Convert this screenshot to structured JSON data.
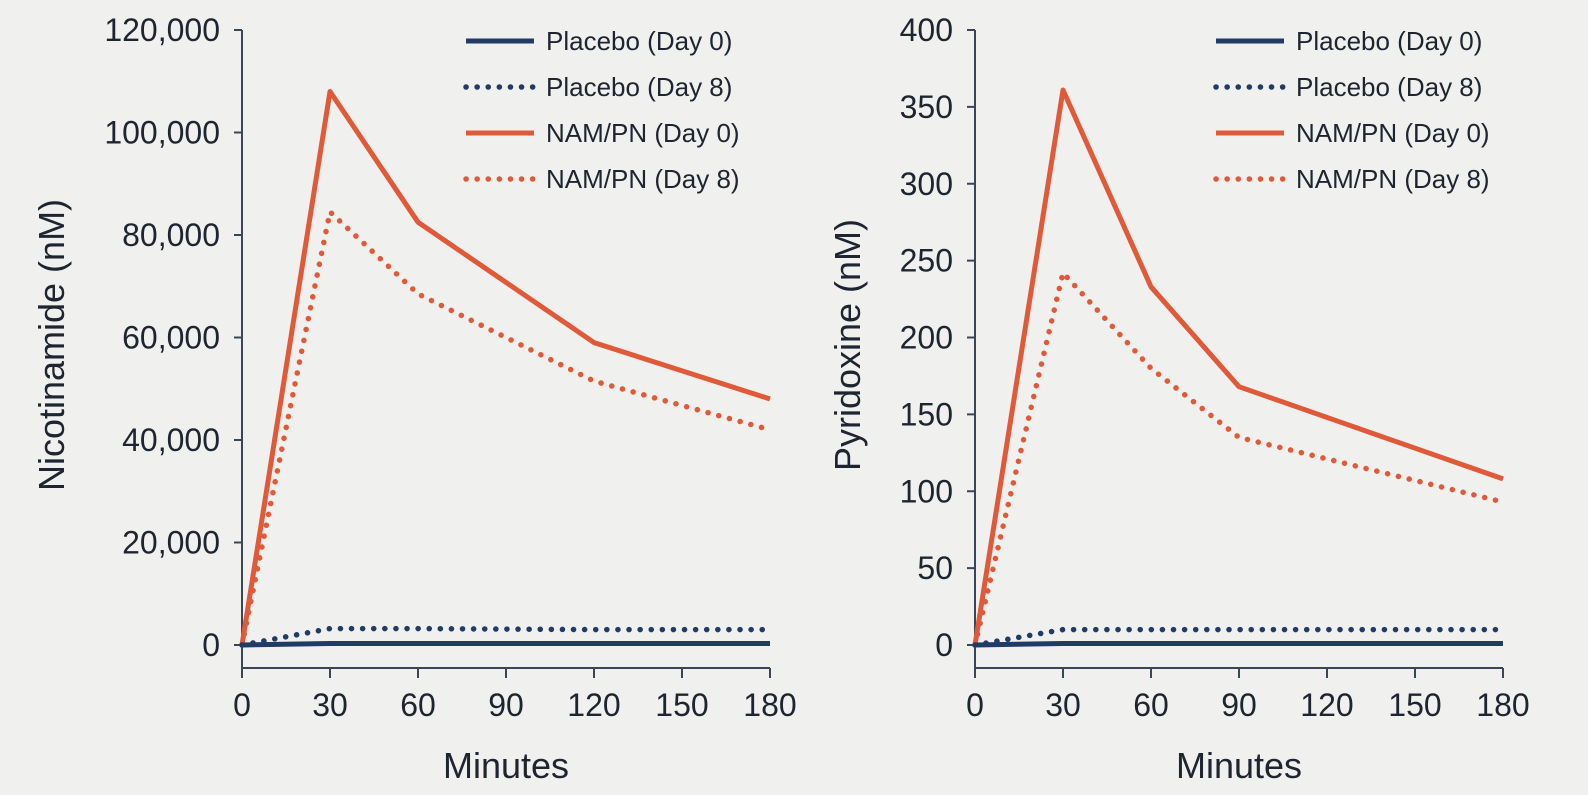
{
  "chart_data": [
    {
      "type": "line",
      "xlabel": "Minutes",
      "ylabel": "Nicotinamide (nM)",
      "x": [
        0,
        30,
        60,
        120,
        180
      ],
      "xlim": [
        0,
        180
      ],
      "ylim": [
        0,
        120000
      ],
      "xticks": [
        0,
        30,
        60,
        90,
        120,
        150,
        180
      ],
      "yticks": [
        0,
        20000,
        40000,
        60000,
        80000,
        100000,
        120000
      ],
      "xtick_labels": [
        "0",
        "30",
        "60",
        "90",
        "120",
        "150",
        "180"
      ],
      "ytick_labels": [
        "0",
        "20,000",
        "40,000",
        "60,000",
        "80,000",
        "100,000",
        "120,000"
      ],
      "legend_position": "top-right",
      "grid": false,
      "series": [
        {
          "name": "Placebo (Day 0)",
          "color": "#1f3b66",
          "style": "solid",
          "values": [
            0,
            300,
            300,
            300,
            300
          ]
        },
        {
          "name": "Placebo (Day 8)",
          "color": "#1f3b66",
          "style": "dotted",
          "values": [
            0,
            3200,
            3200,
            3000,
            3000
          ]
        },
        {
          "name": "NAM/PN (Day 0)",
          "color": "#e05a3a",
          "style": "solid",
          "values": [
            0,
            108000,
            82500,
            59000,
            48000
          ]
        },
        {
          "name": "NAM/PN (Day 8)",
          "color": "#e05a3a",
          "style": "dotted",
          "values": [
            0,
            84500,
            68500,
            51500,
            42000
          ]
        }
      ]
    },
    {
      "type": "line",
      "xlabel": "Minutes",
      "ylabel": "Pyridoxine (nM)",
      "x": [
        0,
        30,
        60,
        90,
        180
      ],
      "xlim": [
        0,
        180
      ],
      "ylim": [
        0,
        400
      ],
      "xticks": [
        0,
        30,
        60,
        90,
        120,
        150,
        180
      ],
      "yticks": [
        0,
        50,
        100,
        150,
        200,
        250,
        300,
        350,
        400
      ],
      "xtick_labels": [
        "0",
        "30",
        "60",
        "90",
        "120",
        "150",
        "180"
      ],
      "ytick_labels": [
        "0",
        "50",
        "100",
        "150",
        "200",
        "250",
        "300",
        "350",
        "400"
      ],
      "legend_position": "top-right",
      "grid": false,
      "series": [
        {
          "name": "Placebo (Day 0)",
          "color": "#1f3b66",
          "style": "solid",
          "values": [
            0,
            1,
            1,
            1,
            1
          ]
        },
        {
          "name": "Placebo (Day 8)",
          "color": "#1f3b66",
          "style": "dotted",
          "values": [
            0,
            10,
            10,
            10,
            10
          ]
        },
        {
          "name": "NAM/PN (Day 0)",
          "color": "#e05a3a",
          "style": "solid",
          "values": [
            0,
            361,
            233,
            168,
            108
          ]
        },
        {
          "name": "NAM/PN (Day 8)",
          "color": "#e05a3a",
          "style": "dotted",
          "values": [
            0,
            242,
            180,
            135,
            93
          ]
        }
      ]
    }
  ]
}
